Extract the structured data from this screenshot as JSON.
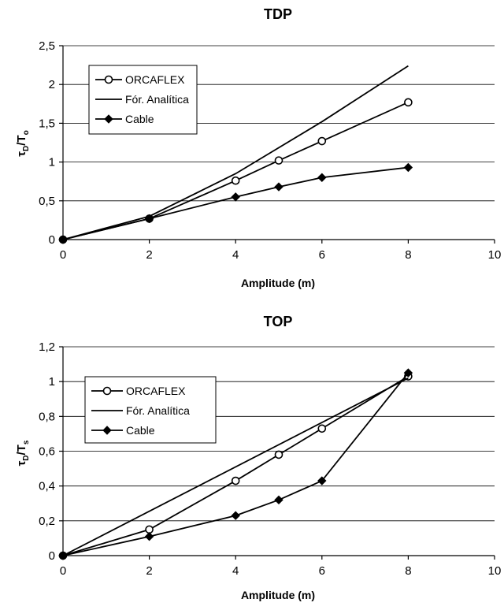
{
  "chart_data": [
    {
      "type": "line",
      "title": "TDP",
      "xlabel": "Amplitude (m)",
      "ylabel": {
        "main": "τ",
        "sub1": "D",
        "sep": "/T",
        "sub2": "o"
      },
      "xlim": [
        0,
        10
      ],
      "ylim": [
        0,
        2.5
      ],
      "xticks": [
        "0",
        "2",
        "4",
        "6",
        "8",
        "10"
      ],
      "yticks": [
        "0",
        "0,5",
        "1",
        "1,5",
        "2",
        "2,5"
      ],
      "grid": "horizontal",
      "legend": "top-left",
      "series": [
        {
          "name": "ORCAFLEX",
          "marker": "open-circle",
          "x": [
            0,
            2,
            4,
            5,
            6,
            8
          ],
          "y": [
            0,
            0.27,
            0.76,
            1.02,
            1.27,
            1.77
          ]
        },
        {
          "name": "Fór. Analítica",
          "marker": "none",
          "x": [
            0,
            2,
            4,
            6,
            8
          ],
          "y": [
            0,
            0.3,
            0.85,
            1.52,
            2.24
          ]
        },
        {
          "name": "Cable",
          "marker": "filled-diamond",
          "x": [
            0,
            2,
            4,
            5,
            6,
            8
          ],
          "y": [
            0,
            0.27,
            0.55,
            0.68,
            0.8,
            0.93
          ]
        }
      ]
    },
    {
      "type": "line",
      "title": "TOP",
      "xlabel": "Amplitude (m)",
      "ylabel": {
        "main": "τ",
        "sub1": "D",
        "sep": "/T",
        "sub2": "s"
      },
      "xlim": [
        0,
        10
      ],
      "ylim": [
        0,
        1.2
      ],
      "xticks": [
        "0",
        "2",
        "4",
        "6",
        "8",
        "10"
      ],
      "yticks": [
        "0",
        "0,2",
        "0,4",
        "0,6",
        "0,8",
        "1",
        "1,2"
      ],
      "grid": "horizontal",
      "legend": "top-left",
      "series": [
        {
          "name": "ORCAFLEX",
          "marker": "open-circle",
          "x": [
            0,
            2,
            4,
            5,
            6,
            8
          ],
          "y": [
            0,
            0.15,
            0.43,
            0.58,
            0.73,
            1.03
          ]
        },
        {
          "name": "Fór. Analítica",
          "marker": "none",
          "x": [
            0,
            8
          ],
          "y": [
            0,
            1.02
          ]
        },
        {
          "name": "Cable",
          "marker": "filled-diamond",
          "x": [
            0,
            2,
            4,
            5,
            6,
            8
          ],
          "y": [
            0,
            0.11,
            0.23,
            0.32,
            0.43,
            1.05
          ]
        }
      ]
    }
  ]
}
